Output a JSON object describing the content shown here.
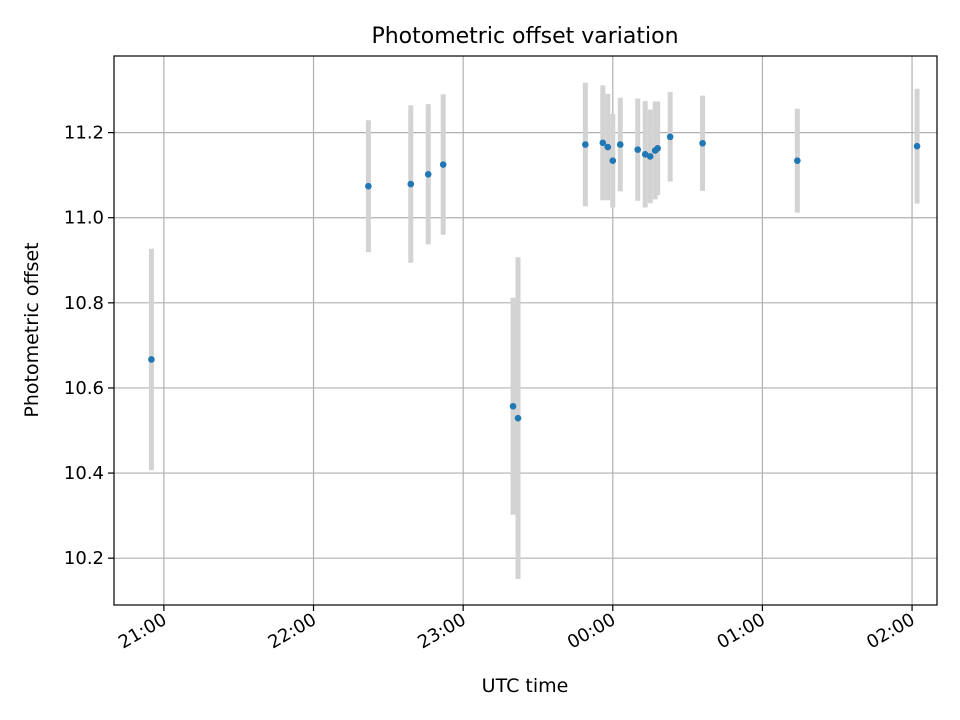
{
  "chart_data": {
    "type": "scatter",
    "title": "Photometric offset variation",
    "xlabel": "UTC time",
    "ylabel": "Photometric offset",
    "x_tick_labels": [
      "21:00",
      "22:00",
      "23:00",
      "00:00",
      "01:00",
      "02:00"
    ],
    "x_tick_times": [
      "21:00",
      "22:00",
      "23:00",
      "00:00",
      "01:00",
      "02:00"
    ],
    "y_ticks": [
      10.2,
      10.4,
      10.6,
      10.8,
      11.0,
      11.2
    ],
    "xlim": [
      "20:40",
      "02:10"
    ],
    "ylim": [
      10.09,
      11.38
    ],
    "grid": true,
    "legend": "none",
    "colors": {
      "point": "#1f77b4",
      "errorbar": "#d3d3d3",
      "grid": "#b0b0b0"
    },
    "points": [
      {
        "x": "20:55",
        "y": 10.667,
        "err": 0.26
      },
      {
        "x": "22:22",
        "y": 11.074,
        "err": 0.155
      },
      {
        "x": "22:39",
        "y": 11.079,
        "err": 0.185
      },
      {
        "x": "22:46",
        "y": 11.102,
        "err": 0.165
      },
      {
        "x": "22:52",
        "y": 11.125,
        "err": 0.165
      },
      {
        "x": "23:20",
        "y": 10.557,
        "err": 0.255
      },
      {
        "x": "23:22",
        "y": 10.529,
        "err": 0.378
      },
      {
        "x": "23:49",
        "y": 11.172,
        "err": 0.145
      },
      {
        "x": "23:56",
        "y": 11.176,
        "err": 0.135
      },
      {
        "x": "23:58",
        "y": 11.166,
        "err": 0.125
      },
      {
        "x": "00:00",
        "y": 11.134,
        "err": 0.11
      },
      {
        "x": "00:03",
        "y": 11.172,
        "err": 0.11
      },
      {
        "x": "00:10",
        "y": 11.16,
        "err": 0.12
      },
      {
        "x": "00:13",
        "y": 11.149,
        "err": 0.125
      },
      {
        "x": "00:15",
        "y": 11.144,
        "err": 0.11
      },
      {
        "x": "00:17",
        "y": 11.158,
        "err": 0.115
      },
      {
        "x": "00:18",
        "y": 11.163,
        "err": 0.11
      },
      {
        "x": "00:23",
        "y": 11.19,
        "err": 0.105
      },
      {
        "x": "00:36",
        "y": 11.175,
        "err": 0.112
      },
      {
        "x": "01:14",
        "y": 11.134,
        "err": 0.122
      },
      {
        "x": "02:02",
        "y": 11.168,
        "err": 0.135
      }
    ]
  }
}
